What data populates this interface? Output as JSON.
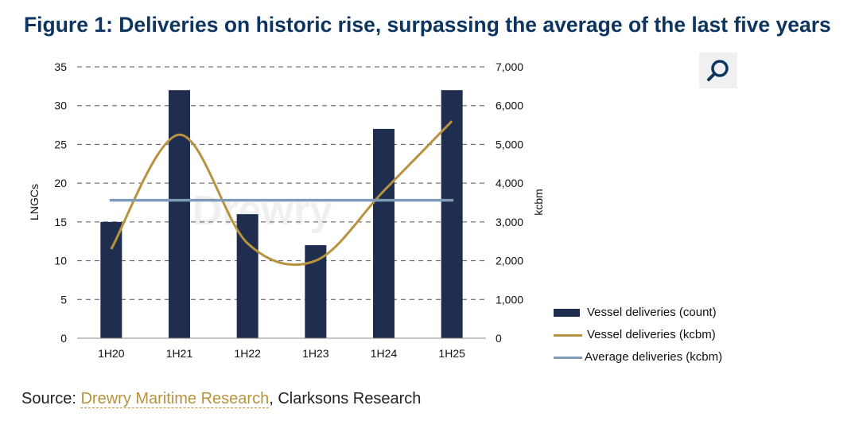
{
  "title": "Figure 1: Deliveries on historic rise, surpassing the average of the last five years",
  "search_icon": "search-icon",
  "chart_data": {
    "type": "bar",
    "categories": [
      "1H20",
      "1H21",
      "1H22",
      "1H23",
      "1H24",
      "1H25"
    ],
    "y_left": {
      "label": "LNGCs",
      "ylim": [
        0,
        35
      ],
      "ticks": [
        "0",
        "5",
        "10",
        "15",
        "20",
        "25",
        "30",
        "35"
      ]
    },
    "y_right": {
      "label": "kcbm",
      "ylim": [
        0,
        7000
      ],
      "ticks": [
        "0",
        "1,000",
        "2,000",
        "3,000",
        "4,000",
        "5,000",
        "6,000",
        "7,000"
      ]
    },
    "series": [
      {
        "name": "Vessel deliveries (count)",
        "type": "bar",
        "axis": "left",
        "color": "#1f2d4f",
        "values": [
          15,
          32,
          16,
          12,
          27,
          32
        ]
      },
      {
        "name": "Vessel deliveries (kcbm)",
        "type": "line",
        "axis": "right",
        "color": "#b8933f",
        "values": [
          2300,
          5250,
          2450,
          2000,
          3800,
          5600
        ]
      },
      {
        "name": "Average deliveries (kcbm)",
        "type": "line",
        "axis": "right",
        "color": "#7f9bb8",
        "values": [
          3560,
          3560,
          3560,
          3560,
          3560,
          3560
        ]
      }
    ],
    "grid": true,
    "gridStyle": "dashed",
    "legend": "bottom-right",
    "watermark": "Drewry"
  },
  "source": {
    "prefix": "Source: ",
    "link": "Drewry Maritime Research",
    "suffix": ", Clarksons Research"
  }
}
